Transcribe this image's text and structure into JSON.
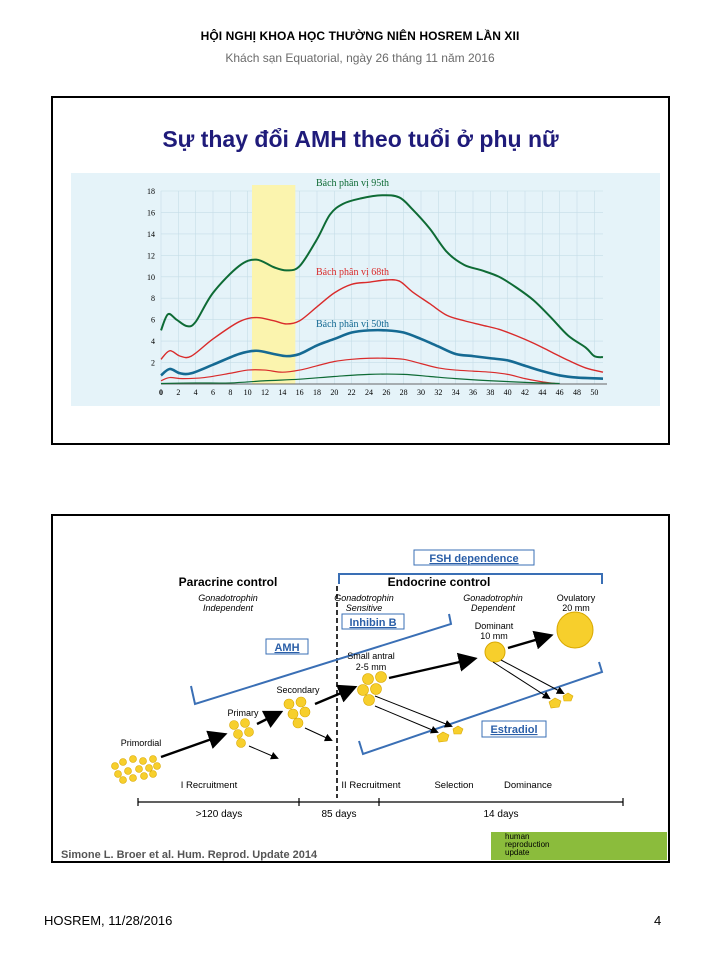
{
  "header": {
    "title": "HỘI NGHỊ KHOA HỌC THƯỜNG NIÊN HOSREM LẦN XII",
    "subtitle": "Khách sạn Equatorial, ngày 26 tháng 11 năm 2016"
  },
  "slide1": {
    "title": "Sự thay đổi AMH theo tuổi ở phụ nữ",
    "chart_data": {
      "type": "line",
      "title": "",
      "xlabel": "",
      "ylabel": "",
      "xlim": [
        0,
        51
      ],
      "ylim": [
        0,
        18
      ],
      "x_ticks": [
        "0",
        "2",
        "4",
        "6",
        "8",
        "10",
        "12",
        "14",
        "16",
        "18",
        "20",
        "22",
        "24",
        "26",
        "28",
        "30",
        "32",
        "34",
        "36",
        "38",
        "40",
        "42",
        "44",
        "46",
        "48",
        "50"
      ],
      "y_ticks": [
        "2",
        "4",
        "6",
        "8",
        "10",
        "12",
        "14",
        "16",
        "18"
      ],
      "highlight_band": [
        10.5,
        15.5
      ],
      "series": [
        {
          "name": "Bách phân vị 95th",
          "color": "#0e6b35",
          "points": [
            [
              0,
              5
            ],
            [
              0.8,
              6.5
            ],
            [
              1.8,
              6
            ],
            [
              3,
              5.4
            ],
            [
              4,
              5.8
            ],
            [
              6,
              8.5
            ],
            [
              9,
              11
            ],
            [
              11,
              11.6
            ],
            [
              13,
              10.9
            ],
            [
              14.5,
              10.6
            ],
            [
              16,
              11
            ],
            [
              18,
              13.5
            ],
            [
              19.5,
              15.8
            ],
            [
              21,
              16.8
            ],
            [
              23,
              17.3
            ],
            [
              25.5,
              17.6
            ],
            [
              27.5,
              17.4
            ],
            [
              29,
              16.3
            ],
            [
              31,
              14.5
            ],
            [
              33,
              12.3
            ],
            [
              35,
              11.1
            ],
            [
              37,
              10.6
            ],
            [
              39,
              10
            ],
            [
              41,
              9
            ],
            [
              43,
              7.8
            ],
            [
              45,
              6.2
            ],
            [
              47,
              4.5
            ],
            [
              49,
              3.4
            ],
            [
              50,
              2.6
            ],
            [
              51,
              2.5
            ]
          ]
        },
        {
          "name": "Bách phân vị 68th",
          "color": "#d92b2b",
          "points": [
            [
              0,
              2.3
            ],
            [
              1,
              3.1
            ],
            [
              2.2,
              2.6
            ],
            [
              3.5,
              2.6
            ],
            [
              6,
              4.2
            ],
            [
              9,
              5.8
            ],
            [
              11,
              6.2
            ],
            [
              13,
              5.9
            ],
            [
              14.5,
              5.6
            ],
            [
              16,
              5.9
            ],
            [
              18,
              7.2
            ],
            [
              20,
              8.5
            ],
            [
              22,
              9.3
            ],
            [
              24,
              9.5
            ],
            [
              26,
              9.7
            ],
            [
              27.5,
              9.6
            ],
            [
              29,
              8.6
            ],
            [
              31,
              7.5
            ],
            [
              33,
              6.4
            ],
            [
              35,
              5.9
            ],
            [
              37,
              5.5
            ],
            [
              39,
              5.1
            ],
            [
              41,
              4.5
            ],
            [
              43,
              3.8
            ],
            [
              45,
              3
            ],
            [
              47,
              2.2
            ],
            [
              49,
              1.5
            ],
            [
              51,
              1.1
            ]
          ]
        },
        {
          "name": "Bách phân vị 50th",
          "color": "#156a93",
          "points": [
            [
              0,
              0.8
            ],
            [
              1,
              1.4
            ],
            [
              2.2,
              1
            ],
            [
              3.5,
              1
            ],
            [
              6,
              1.8
            ],
            [
              9,
              2.8
            ],
            [
              11,
              3.1
            ],
            [
              13,
              2.8
            ],
            [
              14.5,
              2.6
            ],
            [
              16,
              2.8
            ],
            [
              18,
              3.6
            ],
            [
              20,
              4.2
            ],
            [
              22,
              4.8
            ],
            [
              24,
              5
            ],
            [
              26,
              5
            ],
            [
              28,
              4.8
            ],
            [
              30,
              4.2
            ],
            [
              32,
              3.5
            ],
            [
              34,
              2.8
            ],
            [
              36,
              2.6
            ],
            [
              38,
              2.4
            ],
            [
              40,
              2.2
            ],
            [
              42,
              1.7
            ],
            [
              44,
              1.2
            ],
            [
              46,
              0.8
            ],
            [
              48,
              0.6
            ],
            [
              51,
              0.5
            ]
          ]
        },
        {
          "name": "",
          "color": "#d92b2b",
          "points": [
            [
              0,
              0.3
            ],
            [
              1,
              0.6
            ],
            [
              2.5,
              0.5
            ],
            [
              5,
              0.6
            ],
            [
              8,
              1
            ],
            [
              10,
              1.3
            ],
            [
              12,
              1.3
            ],
            [
              14,
              1.1
            ],
            [
              16,
              1.3
            ],
            [
              18,
              1.7
            ],
            [
              20,
              2.1
            ],
            [
              22,
              2.3
            ],
            [
              24,
              2.4
            ],
            [
              26,
              2.4
            ],
            [
              28,
              2.3
            ],
            [
              30,
              1.9
            ],
            [
              32,
              1.5
            ],
            [
              34,
              1.3
            ],
            [
              36,
              1.2
            ],
            [
              38,
              1.1
            ],
            [
              40,
              0.9
            ],
            [
              42,
              0.5
            ],
            [
              44,
              0.2
            ],
            [
              45.5,
              0.05
            ]
          ]
        },
        {
          "name": "",
          "color": "#0e6b35",
          "points": [
            [
              0,
              0.05
            ],
            [
              4,
              0.1
            ],
            [
              8,
              0.1
            ],
            [
              12,
              0.3
            ],
            [
              16,
              0.45
            ],
            [
              20,
              0.7
            ],
            [
              24,
              0.9
            ],
            [
              28,
              0.9
            ],
            [
              31,
              0.7
            ],
            [
              34,
              0.5
            ],
            [
              38,
              0.3
            ],
            [
              42,
              0.15
            ],
            [
              46,
              0.05
            ]
          ]
        }
      ],
      "labels": [
        "Bách phân vị 95th",
        "Bách phân vị 68th",
        "Bách phân vị 50th"
      ]
    }
  },
  "slide2": {
    "fsh_dependence": "FSH dependence",
    "paracrine_control": "Paracrine control",
    "gonado_independent": [
      "Gonadotrophin",
      "Independent"
    ],
    "endocrine_control": "Endocrine control",
    "gonado_sensitive": [
      "Gonadotrophin",
      "Sensitive"
    ],
    "gonado_dependent": [
      "Gonadotrophin",
      "Dependent"
    ],
    "ovulatory": [
      "Ovulatory",
      "20 mm"
    ],
    "dominant": [
      "Dominant",
      "10 mm"
    ],
    "small_antral": [
      "Small antral",
      "2-5 mm"
    ],
    "secondary": "Secondary",
    "primary": "Primary",
    "primordial": "Primordial",
    "inhibin_b": "Inhibin B",
    "amh": "AMH",
    "estradiol": "Estradiol",
    "stages": [
      "I Recruitment",
      "II Recruitment",
      "Selection",
      "Dominance"
    ],
    "durations": [
      ">120 days",
      "85 days",
      "14 days"
    ],
    "citation": "Simone L. Broer et al. Hum. Reprod. Update 2014",
    "journal_logo": [
      "human",
      "reproduction",
      "update"
    ],
    "colors": {
      "follicle": "#f7cf2c",
      "blue_label": "#2b5fa8",
      "bracket": "#3a6fb5"
    }
  },
  "footer": {
    "left": "HOSREM, 11/28/2016",
    "page": "4"
  }
}
